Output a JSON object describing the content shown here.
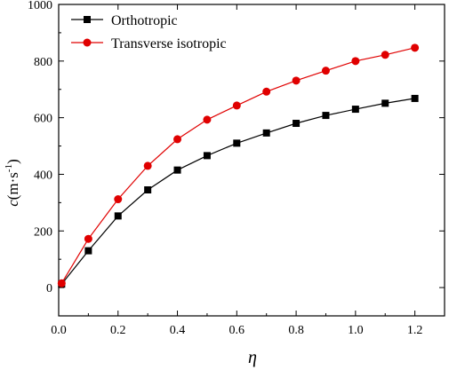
{
  "chart_data": {
    "type": "line",
    "title": "",
    "xlabel": "η",
    "ylabel": {
      "symbol": "c",
      "unit": "(m·s",
      "sup": "-1",
      "close": ")"
    },
    "xlim": [
      0.0,
      1.3
    ],
    "ylim": [
      -100,
      1000
    ],
    "xticks": [
      "0.0",
      "0.2",
      "0.4",
      "0.6",
      "0.8",
      "1.0",
      "1.2"
    ],
    "yticks": [
      "0",
      "200",
      "400",
      "600",
      "800",
      "1000"
    ],
    "grid": false,
    "legend_position": "top-left",
    "x": [
      0.01,
      0.1,
      0.2,
      0.3,
      0.4,
      0.5,
      0.6,
      0.7,
      0.8,
      0.9,
      1.0,
      1.1,
      1.2
    ],
    "series": [
      {
        "name": "Orthotropic",
        "marker": "square",
        "color": "#000000",
        "values": [
          12,
          130,
          253,
          345,
          415,
          466,
          510,
          546,
          580,
          608,
          630,
          651,
          668
        ]
      },
      {
        "name": "Transverse isotropic",
        "marker": "circle",
        "color": "#e00000",
        "values": [
          15,
          172,
          312,
          430,
          524,
          593,
          643,
          692,
          731,
          766,
          800,
          822,
          847
        ]
      }
    ]
  }
}
